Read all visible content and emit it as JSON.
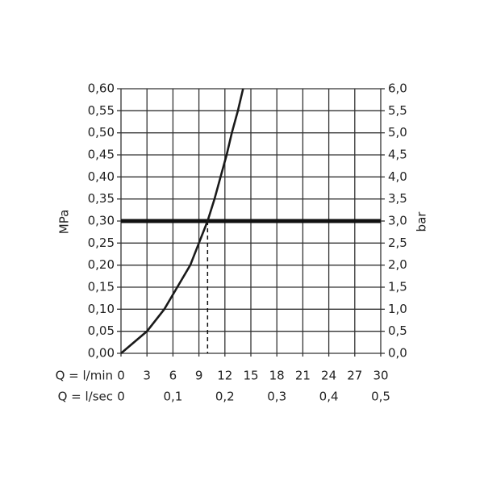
{
  "chart_data": {
    "type": "line",
    "xlabel": "Q = l/min",
    "x2label": "Q = l/sec",
    "ylabel": "MPa",
    "y2label": "bar",
    "xlim": [
      0,
      30
    ],
    "xticks": [
      0,
      3,
      6,
      9,
      12,
      15,
      18,
      21,
      24,
      27,
      30
    ],
    "x2lim": [
      0,
      0.5
    ],
    "x2ticks": [
      0,
      {
        "value": 0.1,
        "label": "0,1"
      },
      {
        "value": 0.2,
        "label": "0,2"
      },
      {
        "value": 0.3,
        "label": "0,3"
      },
      {
        "value": 0.4,
        "label": "0,4"
      },
      {
        "value": 0.5,
        "label": "0,5"
      }
    ],
    "ylim": [
      0,
      0.6
    ],
    "yticks": [
      {
        "value": 0,
        "label": "0,00"
      },
      {
        "value": 0.05,
        "label": "0,05"
      },
      {
        "value": 0.1,
        "label": "0,10"
      },
      {
        "value": 0.15,
        "label": "0,15"
      },
      {
        "value": 0.2,
        "label": "0,20"
      },
      {
        "value": 0.25,
        "label": "0,25"
      },
      {
        "value": 0.3,
        "label": "0,30"
      },
      {
        "value": 0.35,
        "label": "0,35"
      },
      {
        "value": 0.4,
        "label": "0,40"
      },
      {
        "value": 0.45,
        "label": "0,45"
      },
      {
        "value": 0.5,
        "label": "0,50"
      },
      {
        "value": 0.55,
        "label": "0,55"
      },
      {
        "value": 0.6,
        "label": "0,60"
      }
    ],
    "y2lim": [
      0,
      6
    ],
    "y2ticks": [
      {
        "value": 0,
        "label": "0,0"
      },
      {
        "value": 0.5,
        "label": "0,5"
      },
      {
        "value": 1,
        "label": "1,0"
      },
      {
        "value": 1.5,
        "label": "1,5"
      },
      {
        "value": 2,
        "label": "2,0"
      },
      {
        "value": 2.5,
        "label": "2,5"
      },
      {
        "value": 3,
        "label": "3,0"
      },
      {
        "value": 3.5,
        "label": "3,5"
      },
      {
        "value": 4,
        "label": "4,0"
      },
      {
        "value": 4.5,
        "label": "4,5"
      },
      {
        "value": 5,
        "label": "5,0"
      },
      {
        "value": 5.5,
        "label": "5,5"
      },
      {
        "value": 6,
        "label": "6,0"
      }
    ],
    "grid": true,
    "color": "#1a1a1a",
    "x": [
      0,
      3,
      5,
      6.5,
      8,
      9,
      10,
      10.8,
      11.5,
      12.2,
      12.8,
      13.5,
      14.1
    ],
    "values": [
      0,
      0.05,
      0.1,
      0.15,
      0.2,
      0.25,
      0.3,
      0.35,
      0.4,
      0.45,
      0.5,
      0.55,
      0.6
    ],
    "reference_y": 0.3,
    "reference_x": 10
  }
}
